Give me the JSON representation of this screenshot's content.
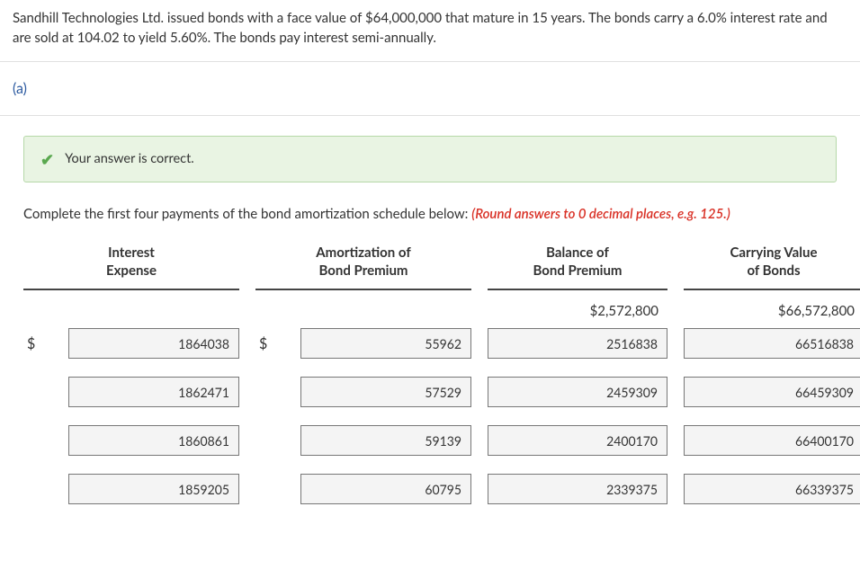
{
  "problem_text": "Sandhill Technologies Ltd. issued bonds with a face value of $64,000,000 that mature in 15 years. The bonds carry a 6.0% interest rate and are sold at 104.02 to yield 5.60%. The bonds pay interest semi-annually.",
  "part_label": "(a)",
  "feedback": "Your answer is correct.",
  "instruction_prefix": "Complete the first four payments of the bond amortization schedule below: ",
  "instruction_note": "(Round answers to 0 decimal places, e.g. 125.)",
  "headers": {
    "col1_line1": "Interest",
    "col1_line2": "Expense",
    "col2_line1": "Amortization of",
    "col2_line2": "Bond Premium",
    "col3_line1": "Balance of",
    "col3_line2": "Bond Premium",
    "col4_line1": "Carrying Value",
    "col4_line2": "of Bonds"
  },
  "initial": {
    "balance": "$2,572,800",
    "carrying": "$66,572,800"
  },
  "dollar_sign": "$",
  "rows": [
    {
      "interest": "1864038",
      "amort": "55962",
      "balance": "2516838",
      "carrying": "66516838"
    },
    {
      "interest": "1862471",
      "amort": "57529",
      "balance": "2459309",
      "carrying": "66459309"
    },
    {
      "interest": "1860861",
      "amort": "59139",
      "balance": "2400170",
      "carrying": "66400170"
    },
    {
      "interest": "1859205",
      "amort": "60795",
      "balance": "2339375",
      "carrying": "66339375"
    }
  ],
  "style": {
    "feedback_bg": "#e9f4e3",
    "feedback_border": "#b6d8a8",
    "check_color": "#5aa84f",
    "red_color": "#d93025",
    "part_color": "#2c5aa0",
    "input_bg": "#f4f4f4",
    "input_border": "#777777",
    "header_border": "#444444",
    "text_color": "#333333"
  }
}
